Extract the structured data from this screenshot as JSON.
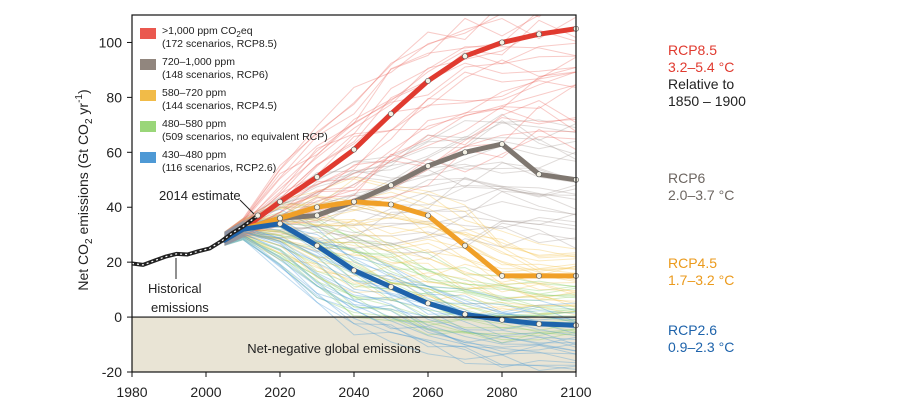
{
  "chart_data": {
    "type": "line",
    "ylabel": {
      "pre": "Net CO",
      "sub1": "2",
      "mid": " emissions (Gt CO",
      "sub2": "2",
      "post": " yr",
      "sup": "-1",
      "close": ")"
    },
    "xlim": [
      1980,
      2100
    ],
    "ylim": [
      -20,
      110
    ],
    "xticks": [
      1980,
      2000,
      2020,
      2040,
      2060,
      2080,
      2100
    ],
    "yticks": [
      -20,
      0,
      20,
      40,
      60,
      80,
      100
    ],
    "net_negative_label": "Net-negative global emissions",
    "historical": {
      "label_line1": "Historical",
      "label_line2": "emissions",
      "color": "#222222",
      "x": [
        1980,
        1983,
        1986,
        1989,
        1992,
        1995,
        1998,
        2001,
        2004,
        2007,
        2010,
        2013,
        2014
      ],
      "y": [
        19.5,
        19,
        20.5,
        22,
        23,
        22.8,
        24,
        25,
        27.5,
        30.5,
        33,
        36,
        37
      ]
    },
    "estimate": {
      "label": "2014 estimate",
      "year": 2014,
      "value": 37
    },
    "legend": [
      {
        "line1": ">1,000 ppm CO",
        "sub": "2",
        "line1_post": "eq",
        "line2": "(172 scenarios, RCP8.5)",
        "color": "#e8463c"
      },
      {
        "line1": "720–1,000 ppm",
        "line2": "(148 scenarios, RCP6)",
        "color": "#857970"
      },
      {
        "line1": "580–720 ppm",
        "line2": "(144 scenarios, RCP4.5)",
        "color": "#f0b434"
      },
      {
        "line1": "480–580 ppm",
        "line2": "(509 scenarios, no equivalent RCP)",
        "color": "#8fd26a"
      },
      {
        "line1": "430–480 ppm",
        "line2": "(116 scenarios, RCP2.6)",
        "color": "#3b8ed0"
      }
    ],
    "series": [
      {
        "name": "RCP8.5",
        "color": "#e03a2f",
        "band_color": "#ec6b62",
        "x": [
          2005,
          2010,
          2020,
          2030,
          2040,
          2050,
          2060,
          2070,
          2080,
          2090,
          2100
        ],
        "values": [
          28,
          32,
          42,
          51,
          61,
          74,
          86,
          95,
          100,
          103,
          105
        ],
        "band_lo": [
          26,
          29,
          33,
          38,
          42,
          46,
          52,
          56,
          60,
          63,
          65
        ],
        "band_hi": [
          31,
          36,
          54,
          68,
          82,
          94,
          103,
          108,
          112,
          114,
          116
        ]
      },
      {
        "name": "RCP6",
        "color": "#7f7770",
        "band_color": "#a59c95",
        "x": [
          2005,
          2010,
          2020,
          2030,
          2040,
          2050,
          2060,
          2070,
          2080,
          2090,
          2100
        ],
        "values": [
          28,
          32,
          36,
          37,
          42,
          48,
          55,
          60,
          63,
          52,
          50
        ],
        "band_lo": [
          26,
          29,
          28,
          26,
          24,
          24,
          25,
          26,
          27,
          26,
          25
        ],
        "band_hi": [
          31,
          36,
          44,
          52,
          58,
          62,
          66,
          70,
          72,
          70,
          68
        ]
      },
      {
        "name": "RCP4.5",
        "color": "#f0a028",
        "band_color": "#f3c24d",
        "x": [
          2005,
          2010,
          2020,
          2030,
          2040,
          2050,
          2060,
          2070,
          2080,
          2090,
          2100
        ],
        "values": [
          28,
          32,
          36,
          40,
          42,
          41,
          37,
          26,
          15,
          15,
          15
        ],
        "band_lo": [
          26,
          29,
          22,
          14,
          10,
          7,
          5,
          3,
          2,
          2,
          2
        ],
        "band_hi": [
          31,
          36,
          42,
          46,
          48,
          47,
          44,
          38,
          30,
          26,
          24
        ]
      },
      {
        "name": "480-580",
        "color": "#7bc955",
        "band_color": "#86cf63",
        "x": [
          2005,
          2010,
          2020,
          2030,
          2040,
          2050,
          2060,
          2070,
          2080,
          2090,
          2100
        ],
        "values": [
          28,
          31,
          30,
          26,
          20,
          14,
          10,
          7,
          5,
          4,
          4
        ],
        "band_lo": [
          26,
          28,
          18,
          8,
          0,
          -4,
          -6,
          -7,
          -8,
          -8,
          -8
        ],
        "band_hi": [
          31,
          35,
          40,
          38,
          32,
          26,
          21,
          17,
          14,
          12,
          11
        ]
      },
      {
        "name": "RCP2.6",
        "color": "#1e63ab",
        "band_color": "#4a9ad8",
        "x": [
          2005,
          2010,
          2020,
          2030,
          2040,
          2050,
          2060,
          2070,
          2080,
          2090,
          2100
        ],
        "values": [
          28,
          32,
          34,
          26,
          17,
          11,
          5,
          1,
          -1,
          -2.5,
          -3
        ],
        "band_lo": [
          26,
          28,
          16,
          4,
          -4,
          -8,
          -12,
          -15,
          -18,
          -19,
          -20
        ],
        "band_hi": [
          31,
          35,
          38,
          32,
          24,
          18,
          12,
          8,
          6,
          5,
          4
        ]
      }
    ],
    "right_labels": [
      {
        "title": "RCP8.5",
        "range": "3.2–5.4 °C",
        "note1": "Relative to",
        "note2": "1850 – 1900",
        "color": "#e03a2f",
        "range_color": "#e03a2f"
      },
      {
        "title": "RCP6",
        "range": "2.0–3.7 °C",
        "color": "#6d6661",
        "range_color": "#6d6661"
      },
      {
        "title": "RCP4.5",
        "range": "1.7–3.2 °C",
        "color": "#eb9a1c",
        "range_color": "#eb9a1c"
      },
      {
        "title": "RCP2.6",
        "range": "0.9–2.3 °C",
        "color": "#1e63ab",
        "range_color": "#1e63ab"
      }
    ]
  }
}
